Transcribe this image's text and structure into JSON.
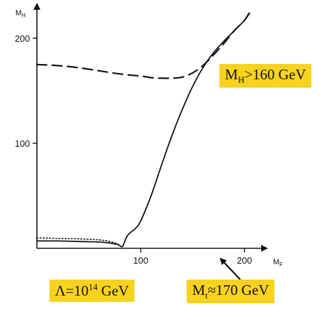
{
  "colors": {
    "background": "#ffffff",
    "ink": "#111111",
    "callout_fill": "#f7d21f"
  },
  "chart_data": {
    "type": "line",
    "title": "",
    "xlabel": {
      "main": "M",
      "sub": "F"
    },
    "ylabel": {
      "main": "M",
      "sub": "H"
    },
    "xlim": [
      0,
      220
    ],
    "ylim": [
      0,
      220
    ],
    "xticks": [
      100,
      200
    ],
    "yticks": [
      100,
      200
    ],
    "xtick_labels": [
      "100",
      "200"
    ],
    "ytick_labels": [
      "100",
      "200"
    ],
    "grid": false,
    "legend": "none",
    "series": [
      {
        "style": "dashed",
        "x": [
          0,
          20,
          40,
          60,
          80,
          100,
          110,
          120,
          130,
          140,
          150,
          160,
          170,
          180,
          190,
          200,
          205
        ],
        "y": [
          175,
          174,
          172,
          169,
          166,
          164,
          162.5,
          162,
          162,
          163,
          167,
          174,
          184,
          195,
          207,
          217,
          225
        ]
      },
      {
        "style": "solid",
        "x": [
          0,
          20,
          40,
          60,
          70,
          78,
          82,
          84,
          86,
          88,
          90,
          95,
          100,
          110,
          120,
          130,
          140,
          150,
          160,
          170,
          180,
          190,
          200,
          205
        ],
        "y": [
          7,
          7,
          6.5,
          6,
          5,
          3.5,
          1.5,
          5,
          10,
          13,
          15,
          19,
          26,
          50,
          79,
          107,
          132,
          154,
          172,
          186,
          197,
          207,
          217,
          224
        ]
      },
      {
        "style": "dotted",
        "x": [
          0,
          20,
          40,
          60,
          70,
          78,
          80
        ],
        "y": [
          10,
          9.5,
          9,
          8,
          6.5,
          4,
          2
        ]
      }
    ],
    "annotations": {
      "mh_bound": {
        "prefix": "M",
        "sub": "H",
        "suffix": ">160 GeV"
      },
      "lambda": {
        "prefix": "Λ=10",
        "sup": "14",
        "suffix": " GeV"
      },
      "top_mass": {
        "prefix": "M",
        "sub": "t",
        "suffix": "≈170 GeV",
        "arrow_tip": {
          "x": 175,
          "y": -12
        }
      }
    }
  }
}
